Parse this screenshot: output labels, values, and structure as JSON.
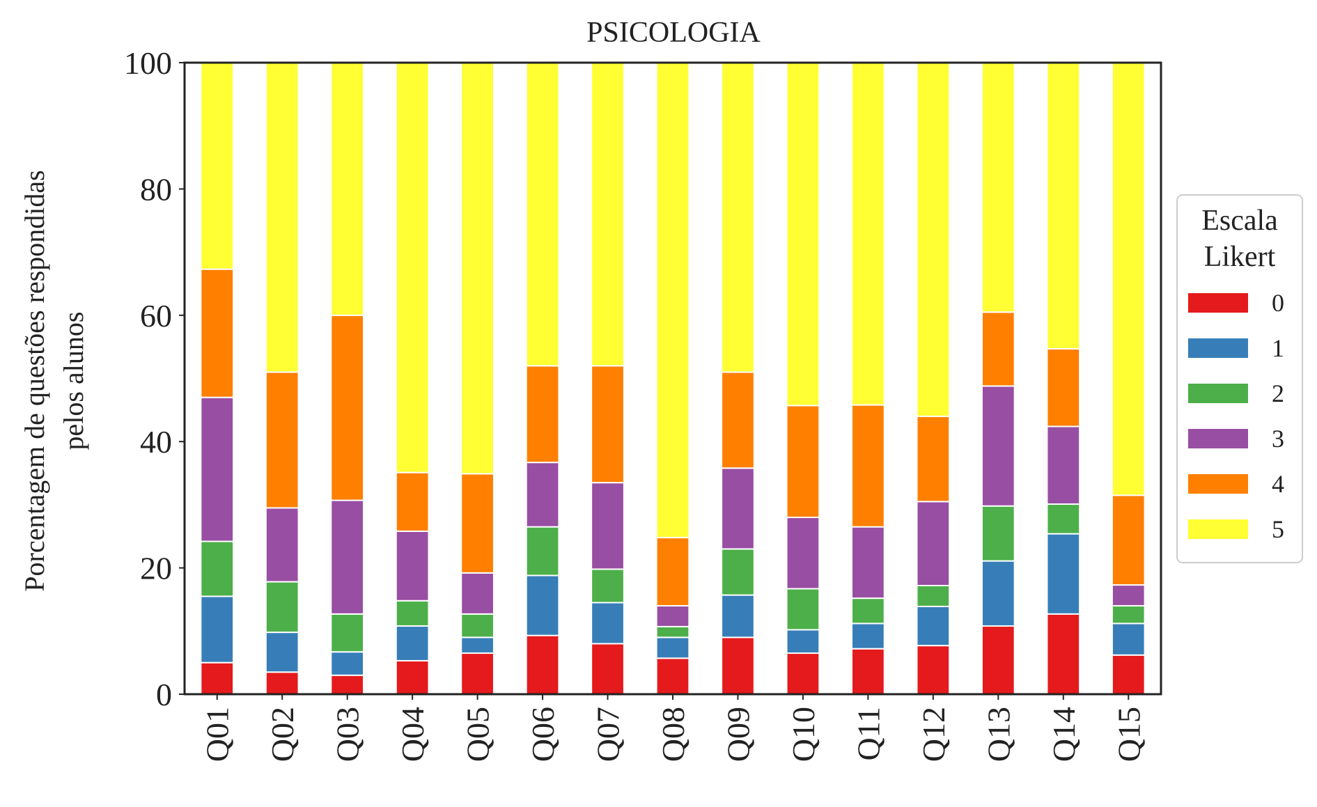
{
  "chart_data": {
    "type": "bar",
    "stacked": true,
    "title": "PSICOLOGIA",
    "xlabel": "",
    "ylabel_lines": [
      "Porcentagem de questões respondidas",
      "pelos alunos"
    ],
    "ylim": [
      0,
      100
    ],
    "yticks": [
      "0",
      "20",
      "40",
      "60",
      "80",
      "100"
    ],
    "grid": false,
    "legend_position": "right",
    "legend_title_lines": [
      "Escala",
      "Likert"
    ],
    "categories": [
      "Q01",
      "Q02",
      "Q03",
      "Q04",
      "Q05",
      "Q06",
      "Q07",
      "Q08",
      "Q09",
      "Q10",
      "Q11",
      "Q12",
      "Q13",
      "Q14",
      "Q15"
    ],
    "series": [
      {
        "name": "0",
        "color": "#e41a1c",
        "values": [
          5.0,
          3.5,
          3.0,
          5.3,
          6.5,
          9.3,
          8.0,
          5.7,
          9.0,
          6.5,
          7.2,
          7.7,
          10.8,
          12.7,
          6.2
        ]
      },
      {
        "name": "1",
        "color": "#377eb8",
        "values": [
          10.5,
          6.3,
          3.7,
          5.5,
          2.5,
          9.5,
          6.5,
          3.3,
          6.7,
          3.7,
          4.0,
          6.2,
          10.3,
          12.7,
          5.0
        ]
      },
      {
        "name": "2",
        "color": "#4daf4a",
        "values": [
          8.7,
          8.0,
          6.0,
          4.0,
          3.7,
          7.7,
          5.3,
          1.7,
          7.3,
          6.5,
          4.0,
          3.3,
          8.7,
          4.7,
          2.8
        ]
      },
      {
        "name": "3",
        "color": "#984ea3",
        "values": [
          22.8,
          11.7,
          18.0,
          11.0,
          6.5,
          10.2,
          13.7,
          3.3,
          12.8,
          11.3,
          11.3,
          13.3,
          19.0,
          12.3,
          3.3
        ]
      },
      {
        "name": "4",
        "color": "#ff7f00",
        "values": [
          20.3,
          21.5,
          29.3,
          9.3,
          15.7,
          15.3,
          18.5,
          10.8,
          15.2,
          17.7,
          19.3,
          13.5,
          11.7,
          12.3,
          14.2
        ]
      },
      {
        "name": "5",
        "color": "#ffff33",
        "values": [
          32.7,
          49.0,
          40.0,
          64.9,
          65.1,
          48.0,
          48.0,
          75.2,
          49.0,
          54.3,
          54.2,
          56.0,
          39.5,
          45.3,
          68.5
        ]
      }
    ]
  }
}
